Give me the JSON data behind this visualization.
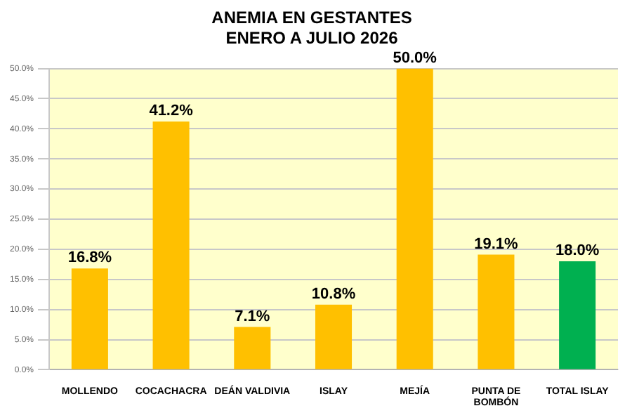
{
  "chart_data": {
    "type": "bar",
    "title": "ANEMIA EN GESTANTES",
    "subtitle": "ENERO A JULIO 2026",
    "categories": [
      "MOLLENDO",
      "COCACHACRA",
      "DEÁN VALDIVIA",
      "ISLAY",
      "MEJÍA",
      "PUNTA DE BOMBÓN",
      "TOTAL ISLAY"
    ],
    "values": [
      16.8,
      41.2,
      7.1,
      10.8,
      50.0,
      19.1,
      18.0
    ],
    "colors": [
      "#ffc000",
      "#ffc000",
      "#ffc000",
      "#ffc000",
      "#ffc000",
      "#ffc000",
      "#00b050"
    ],
    "value_labels": [
      "16.8%",
      "41.2%",
      "7.1%",
      "10.8%",
      "50.0%",
      "19.1%",
      "18.0%"
    ],
    "ylim": [
      0,
      50
    ],
    "yticks": [
      {
        "value": 0,
        "label": "0.0%"
      },
      {
        "value": 5,
        "label": "5.0%"
      },
      {
        "value": 10,
        "label": "10.0%"
      },
      {
        "value": 15,
        "label": "15.0%"
      },
      {
        "value": 20,
        "label": "20.0%"
      },
      {
        "value": 25,
        "label": "25.0%"
      },
      {
        "value": 30,
        "label": "30.0%"
      },
      {
        "value": 35,
        "label": "35.0%"
      },
      {
        "value": 40,
        "label": "40.0%"
      },
      {
        "value": 45,
        "label": "45.0%"
      },
      {
        "value": 50,
        "label": "50.0%"
      }
    ],
    "grid": "y",
    "legend": false
  }
}
